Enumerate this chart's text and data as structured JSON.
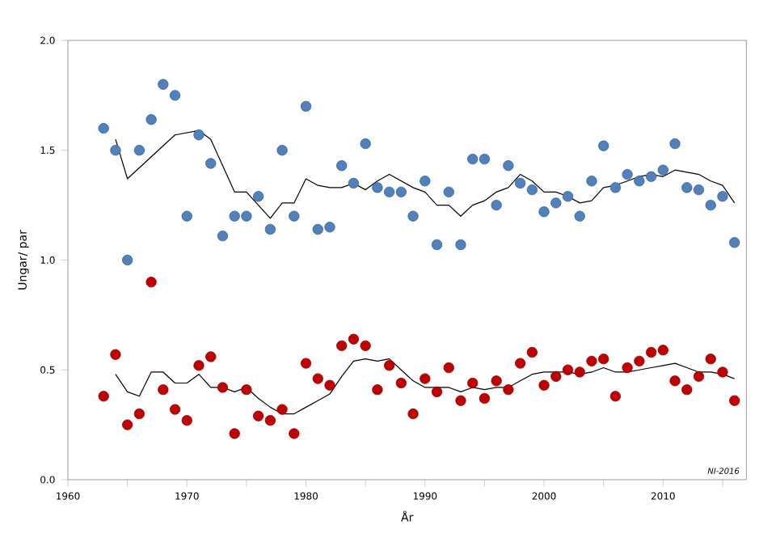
{
  "chart_data": {
    "type": "scatter",
    "xlabel": "År",
    "ylabel": "Ungar/ par",
    "x": [
      1963,
      1964,
      1965,
      1966,
      1967,
      1968,
      1969,
      1970,
      1971,
      1972,
      1973,
      1974,
      1975,
      1976,
      1977,
      1978,
      1979,
      1980,
      1981,
      1982,
      1983,
      1984,
      1985,
      1986,
      1987,
      1988,
      1989,
      1990,
      1991,
      1992,
      1993,
      1994,
      1995,
      1996,
      1997,
      1998,
      1999,
      2000,
      2001,
      2002,
      2003,
      2004,
      2005,
      2006,
      2007,
      2008,
      2009,
      2010,
      2011,
      2012,
      2013,
      2014,
      2015,
      2016
    ],
    "series": [
      {
        "marker": "circle",
        "color": "#4f81bd",
        "values": [
          1.6,
          1.5,
          1.0,
          1.5,
          1.64,
          1.8,
          1.75,
          1.2,
          1.57,
          1.44,
          1.11,
          1.2,
          1.2,
          1.29,
          1.14,
          1.5,
          1.2,
          1.7,
          1.14,
          1.15,
          1.43,
          1.35,
          1.53,
          1.33,
          1.31,
          1.31,
          1.2,
          1.36,
          1.07,
          1.31,
          1.07,
          1.46,
          1.46,
          1.25,
          1.43,
          1.35,
          1.32,
          1.22,
          1.26,
          1.29,
          1.2,
          1.36,
          1.52,
          1.33,
          1.39,
          1.36,
          1.38,
          1.41,
          1.53,
          1.33,
          1.32,
          1.25,
          1.29,
          1.08
        ]
      },
      {
        "type": "line",
        "marker": "none",
        "color": "#000000",
        "x": [
          1964,
          1965,
          1966,
          1967,
          1968,
          1969,
          1970,
          1971,
          1972,
          1973,
          1974,
          1975,
          1976,
          1977,
          1978,
          1979,
          1980,
          1981,
          1982,
          1983,
          1984,
          1985,
          1986,
          1987,
          1988,
          1989,
          1990,
          1991,
          1992,
          1993,
          1994,
          1995,
          1996,
          1997,
          1998,
          1999,
          2000,
          2001,
          2002,
          2003,
          2004,
          2005,
          2006,
          2007,
          2008,
          2009,
          2010,
          2011,
          2012,
          2013,
          2014,
          2015,
          2016
        ],
        "values": [
          1.55,
          1.37,
          1.42,
          1.47,
          1.52,
          1.57,
          1.58,
          1.59,
          1.55,
          1.43,
          1.31,
          1.31,
          1.25,
          1.19,
          1.26,
          1.26,
          1.37,
          1.34,
          1.33,
          1.33,
          1.35,
          1.32,
          1.36,
          1.39,
          1.36,
          1.33,
          1.31,
          1.25,
          1.25,
          1.2,
          1.25,
          1.27,
          1.31,
          1.33,
          1.39,
          1.36,
          1.31,
          1.31,
          1.29,
          1.26,
          1.27,
          1.33,
          1.34,
          1.36,
          1.38,
          1.39,
          1.38,
          1.41,
          1.4,
          1.39,
          1.36,
          1.34,
          1.26
        ]
      },
      {
        "marker": "circle",
        "color": "#c00000",
        "values": [
          0.38,
          0.57,
          0.25,
          0.3,
          0.9,
          0.41,
          0.32,
          0.27,
          0.52,
          0.56,
          0.42,
          0.21,
          0.41,
          0.29,
          0.27,
          0.32,
          0.21,
          0.53,
          0.46,
          0.43,
          0.61,
          0.64,
          0.61,
          0.41,
          0.52,
          0.44,
          0.3,
          0.46,
          0.4,
          0.51,
          0.36,
          0.44,
          0.37,
          0.45,
          0.41,
          0.53,
          0.58,
          0.43,
          0.47,
          0.5,
          0.49,
          0.54,
          0.55,
          0.38,
          0.51,
          0.54,
          0.58,
          0.59,
          0.45,
          0.41,
          0.47,
          0.55,
          0.49,
          0.36
        ]
      },
      {
        "type": "line",
        "marker": "none",
        "color": "#000000",
        "x": [
          1964,
          1965,
          1966,
          1967,
          1968,
          1969,
          1970,
          1971,
          1972,
          1973,
          1974,
          1975,
          1976,
          1977,
          1978,
          1979,
          1980,
          1981,
          1982,
          1983,
          1984,
          1985,
          1986,
          1987,
          1988,
          1989,
          1990,
          1991,
          1992,
          1993,
          1994,
          1995,
          1996,
          1997,
          1998,
          1999,
          2000,
          2001,
          2002,
          2003,
          2004,
          2005,
          2006,
          2007,
          2008,
          2009,
          2010,
          2011,
          2012,
          2013,
          2014,
          2015,
          2016
        ],
        "values": [
          0.48,
          0.4,
          0.38,
          0.49,
          0.49,
          0.44,
          0.44,
          0.48,
          0.42,
          0.42,
          0.4,
          0.42,
          0.37,
          0.33,
          0.3,
          0.3,
          0.33,
          0.36,
          0.39,
          0.47,
          0.54,
          0.55,
          0.54,
          0.55,
          0.5,
          0.45,
          0.42,
          0.42,
          0.42,
          0.4,
          0.42,
          0.41,
          0.42,
          0.42,
          0.45,
          0.48,
          0.49,
          0.49,
          0.49,
          0.48,
          0.49,
          0.51,
          0.49,
          0.49,
          0.5,
          0.51,
          0.52,
          0.53,
          0.51,
          0.49,
          0.49,
          0.48,
          0.46
        ]
      }
    ],
    "xlim": [
      1960,
      2017
    ],
    "ylim": [
      0,
      2
    ],
    "xticks": [
      1960,
      {
        "value": 1965,
        "label": null
      },
      1970,
      {
        "value": 1975,
        "label": null
      },
      1980,
      {
        "value": 1985,
        "label": null
      },
      1990,
      {
        "value": 1995,
        "label": null
      },
      2000,
      {
        "value": 2005,
        "label": null
      },
      2010,
      {
        "value": 2015,
        "label": null
      }
    ],
    "yticks": [
      {
        "value": 0,
        "label": "0.0"
      },
      {
        "value": 0.5,
        "label": "0.5"
      },
      {
        "value": 1,
        "label": "1.0"
      },
      {
        "value": 1.5,
        "label": "1.5"
      },
      {
        "value": 2,
        "label": "2.0"
      }
    ],
    "grid": false,
    "annotations": [
      "NI-2016"
    ]
  }
}
